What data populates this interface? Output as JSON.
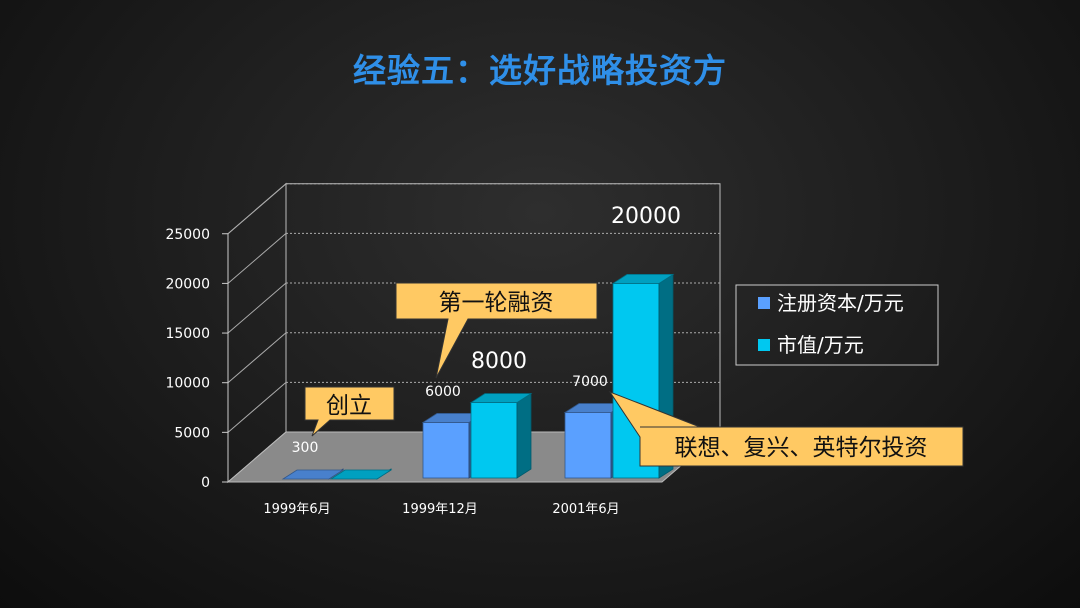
{
  "slide": {
    "title": "经验五：选好战略投资方"
  },
  "chart_data": {
    "type": "bar",
    "categories": [
      "1999年6月",
      "1999年12月",
      "2001年6月"
    ],
    "series": [
      {
        "name": "注册资本/万元",
        "values": [
          300,
          6000,
          7000
        ],
        "color": "#5aa0ff"
      },
      {
        "name": "市值/万元",
        "values": [
          300,
          8000,
          20000
        ],
        "color": "#00c8f0"
      }
    ],
    "data_labels": [
      "300",
      "6000",
      "8000",
      "7000",
      "20000"
    ],
    "yticks": [
      "0",
      "5000",
      "10000",
      "15000",
      "20000",
      "25000"
    ],
    "ylim": [
      0,
      25000
    ],
    "legend_position": "right",
    "grid": true,
    "annotations": [
      "创立",
      "第一轮融资",
      "联想、复兴、英特尔投资"
    ],
    "callout_color": "#ffc963"
  }
}
